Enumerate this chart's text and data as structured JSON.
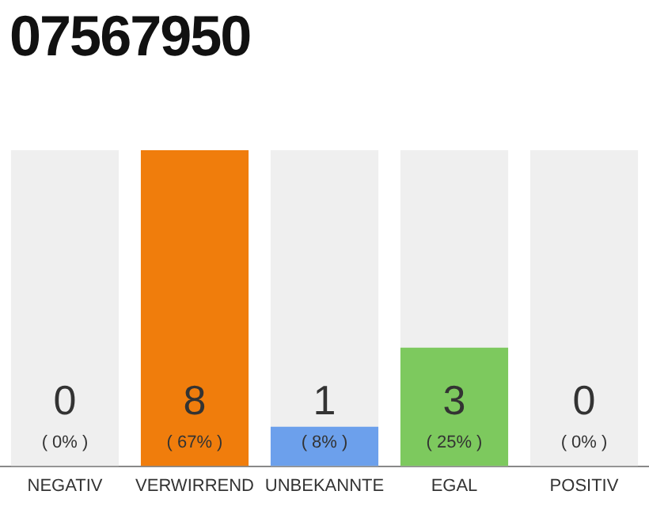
{
  "chart_data": {
    "type": "bar",
    "title": "07567950",
    "categories": [
      "NEGATIV",
      "VERWIRREND",
      "UNBEKANNTE",
      "EGAL",
      "POSITIV"
    ],
    "series": [
      {
        "color": "#efefef",
        "values": [
          8,
          null,
          8,
          8,
          8
        ]
      },
      {
        "colors": [
          "#aaaaaa",
          "#f07d0c",
          "#6ca0ec",
          "#7dc95e",
          "#aaaaaa"
        ],
        "values": [
          0,
          8,
          1,
          3,
          0
        ],
        "value_labels": [
          "0",
          "8",
          "1",
          "3",
          "0"
        ]
      }
    ],
    "ylim": [
      0,
      8
    ],
    "tick_labels": "x",
    "grid": false,
    "legend": false,
    "annotations": [
      {
        "text": "( 0% )",
        "x": "NEGATIV",
        "y": 0
      },
      {
        "text": "( 67% )",
        "x": "VERWIRREND",
        "y": 0
      },
      {
        "text": "( 8% )",
        "x": "UNBEKANNTE",
        "y": 0
      },
      {
        "text": "( 25% )",
        "x": "EGAL",
        "y": 0
      },
      {
        "text": "( 0% )",
        "x": "POSITIV",
        "y": 0
      }
    ]
  }
}
